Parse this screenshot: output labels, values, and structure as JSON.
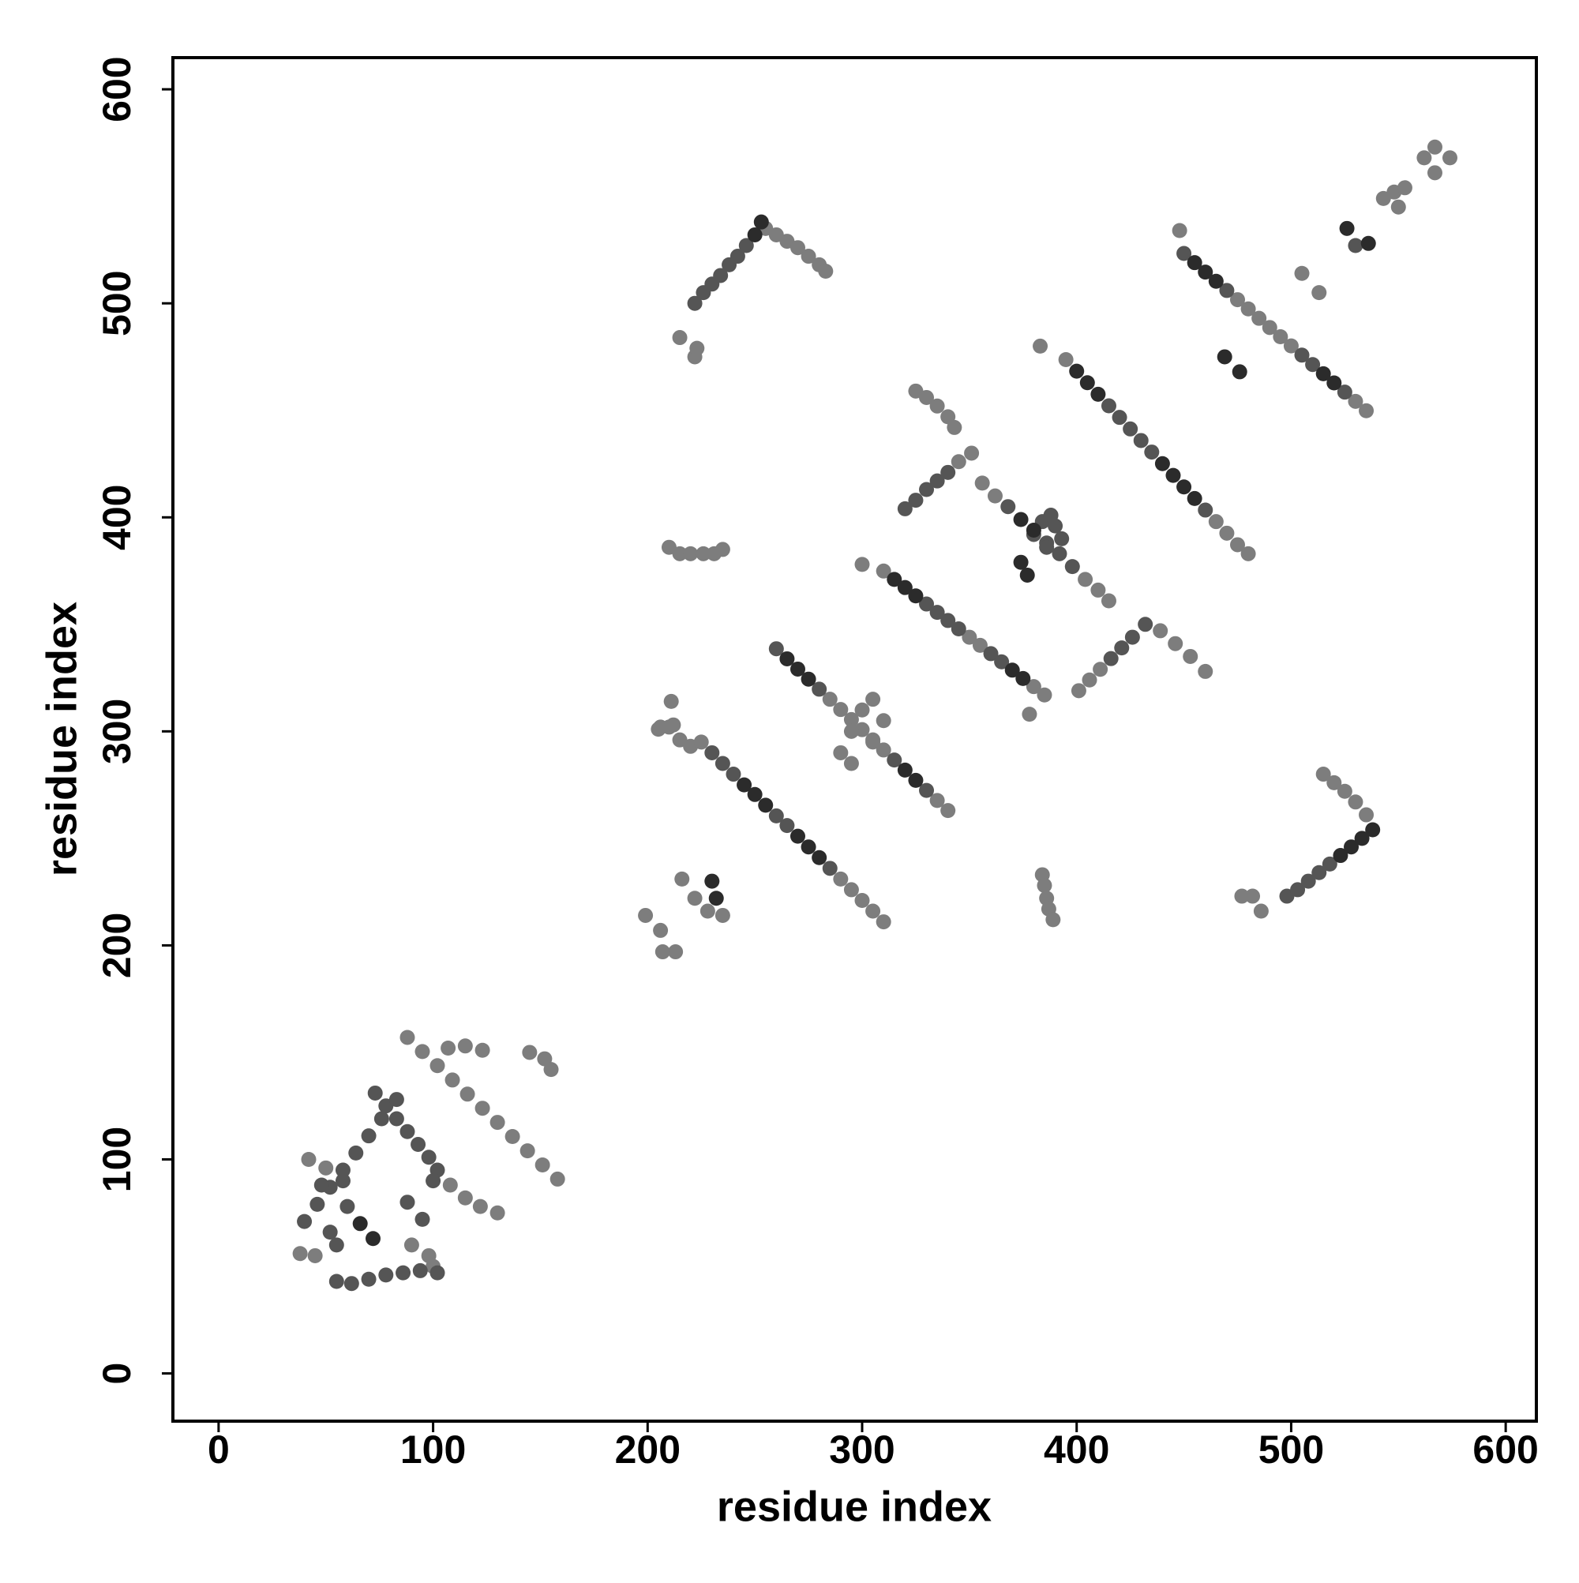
{
  "chart_data": {
    "type": "scatter",
    "xlabel": "residue index",
    "ylabel": "residue index",
    "xlim": [
      -21.3,
      614.3
    ],
    "ylim": [
      -22.3,
      614.8
    ],
    "xticks": [
      0,
      100,
      200,
      300,
      400,
      500,
      600
    ],
    "yticks": [
      0,
      100,
      200,
      300,
      400,
      500,
      600
    ],
    "series": [
      {
        "color": "#7d7d7d",
        "x": [
          255,
          260,
          265,
          270,
          275,
          280,
          283,
          215,
          222,
          223,
          210,
          215,
          220,
          226,
          231,
          235,
          205,
          210,
          215,
          220,
          225,
          290,
          295,
          300,
          305,
          310,
          285,
          290,
          295,
          300,
          305,
          310,
          335,
          340,
          290,
          295,
          300,
          305,
          310,
          295,
          305,
          300,
          310,
          350,
          355,
          380,
          385,
          378,
          383,
          395,
          465,
          470,
          475,
          480,
          448,
          475,
          480,
          485,
          490,
          495,
          500,
          530,
          535,
          325,
          330,
          335,
          340,
          343,
          345,
          351,
          356,
          362,
          404,
          410,
          415,
          401,
          406,
          411,
          439,
          446,
          453,
          460,
          384,
          385,
          386,
          387,
          389,
          515,
          520,
          525,
          530,
          535,
          477,
          482,
          486,
          505,
          513,
          543,
          548,
          553,
          550,
          567,
          574,
          567,
          562,
          88,
          95,
          102,
          109,
          116,
          123,
          130,
          137,
          144,
          151,
          158,
          107,
          115,
          123,
          145,
          152,
          155,
          42,
          50,
          38,
          45,
          90,
          98,
          100,
          108,
          115,
          122,
          130,
          199,
          206,
          213,
          207,
          216,
          222,
          228,
          235,
          211,
          212,
          206
        ],
        "values": [
          535,
          532,
          529,
          526,
          522,
          518,
          515,
          484,
          475,
          479,
          386,
          383,
          383,
          383,
          383,
          385,
          301,
          302,
          296,
          293,
          295,
          231,
          226,
          221,
          216,
          211,
          315,
          310.2,
          305.5,
          300.8,
          296,
          291.3,
          267.7,
          263,
          290,
          285,
          310,
          315,
          305,
          300,
          295,
          378,
          374.9,
          344,
          340.2,
          320.9,
          317,
          308,
          480,
          473.7,
          398,
          392.6,
          387.2,
          383,
          534,
          501.7,
          497.4,
          493,
          488.7,
          484.4,
          480.1,
          454.2,
          449.8,
          459,
          456,
          452,
          447,
          442,
          426,
          430,
          416,
          410,
          371,
          366,
          361,
          319,
          324,
          329,
          347,
          341,
          335,
          328,
          233,
          228,
          222,
          217,
          212,
          280,
          276,
          272,
          267,
          261,
          223,
          223,
          216,
          514,
          505,
          549,
          552,
          554,
          545,
          573,
          568,
          561,
          568,
          157,
          150.4,
          143.8,
          137.1,
          130.5,
          123.9,
          117.3,
          110.7,
          104,
          97.4,
          90.8,
          152,
          153,
          151,
          150,
          147,
          142,
          100,
          96,
          56,
          55,
          60,
          55,
          50,
          88,
          82,
          78,
          75,
          214,
          207,
          197,
          197,
          231,
          222,
          216,
          214,
          314,
          303,
          302
        ]
      },
      {
        "color": "#555555",
        "x": [
          222,
          226,
          230,
          234,
          238,
          242,
          246,
          230,
          235,
          240,
          260,
          265,
          285,
          260,
          280,
          315,
          330,
          330,
          335,
          340,
          345,
          360,
          365,
          415,
          420,
          425,
          430,
          435,
          460,
          450,
          470,
          505,
          510,
          525,
          320,
          325,
          330,
          335,
          340,
          368,
          386,
          392,
          398,
          416,
          421,
          426,
          432,
          380,
          384,
          388,
          390,
          393,
          386,
          498,
          503,
          508,
          513,
          518,
          530,
          73,
          78,
          83,
          88,
          93,
          98,
          102,
          40,
          46,
          52,
          58,
          64,
          70,
          76,
          83,
          55,
          62,
          70,
          78,
          86,
          94,
          102,
          58,
          48,
          60,
          55,
          52,
          95,
          88,
          100
        ],
        "values": [
          500,
          505,
          509,
          513,
          518,
          522,
          527,
          290,
          285,
          280,
          260.5,
          256,
          236,
          338.6,
          319.7,
          286.6,
          272.4,
          359.5,
          355.6,
          351.8,
          347.9,
          336.3,
          332.5,
          452.1,
          446.7,
          441.3,
          435.9,
          430.5,
          403.4,
          523.3,
          506,
          475.8,
          471.4,
          458.5,
          404,
          408,
          413,
          417,
          421,
          405,
          388,
          383,
          377,
          334,
          339,
          344,
          350,
          392,
          398,
          401,
          396,
          390,
          386,
          223,
          226,
          230,
          234,
          238,
          527,
          131,
          125,
          119,
          113,
          107,
          101,
          95,
          71,
          79,
          87,
          95,
          103,
          111,
          119,
          128,
          43,
          42,
          44,
          46,
          47,
          48,
          47,
          90,
          88,
          78,
          60,
          66,
          72,
          80,
          90
        ]
      },
      {
        "color": "#2b2b2b",
        "x": [
          250,
          253,
          245,
          250,
          255,
          270,
          275,
          280,
          265,
          270,
          275,
          320,
          325,
          315,
          320,
          325,
          370,
          375,
          400,
          405,
          410,
          440,
          445,
          450,
          455,
          455,
          460,
          465,
          515,
          520,
          374,
          380,
          374,
          377,
          523,
          528,
          533,
          538,
          469,
          476,
          526,
          536,
          66,
          72,
          230,
          232
        ],
        "values": [
          532,
          538,
          275,
          270.5,
          265.5,
          251,
          246,
          241,
          333.9,
          329.1,
          324.4,
          281.9,
          277.1,
          371,
          367.2,
          363.3,
          328.6,
          324.7,
          468.3,
          462.9,
          457.5,
          425.1,
          419.6,
          414.2,
          408.8,
          519,
          514.6,
          510.3,
          467.1,
          462.8,
          399,
          394,
          379,
          373,
          242,
          246,
          250,
          254,
          475,
          468,
          535,
          528,
          70,
          63,
          230,
          222
        ]
      }
    ]
  }
}
